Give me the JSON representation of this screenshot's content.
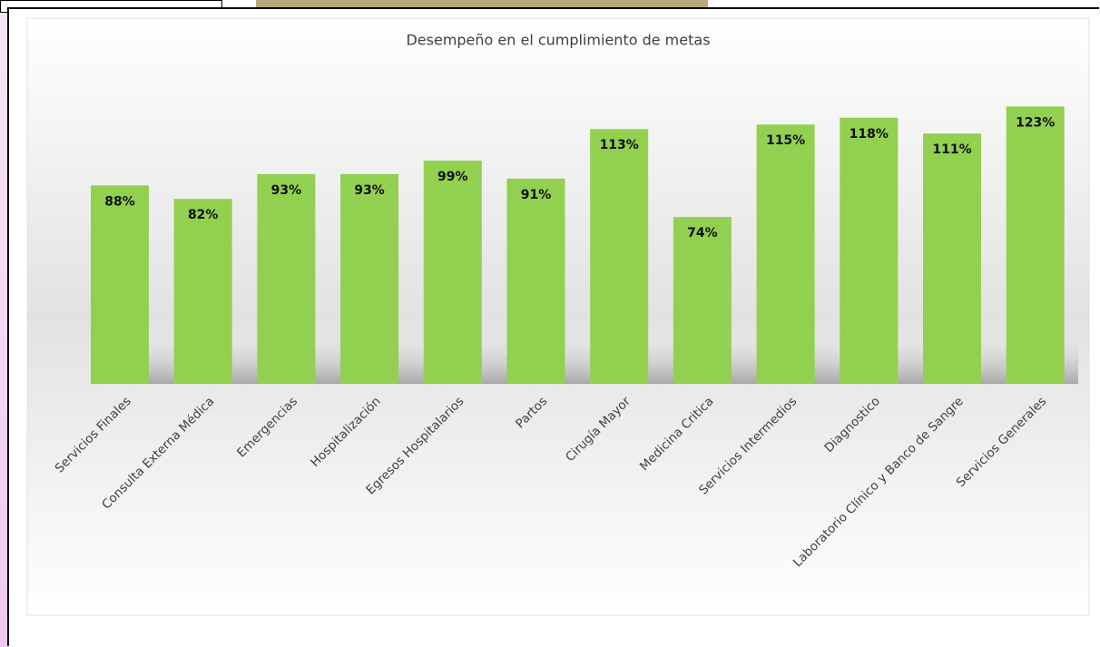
{
  "chart_data": {
    "type": "bar",
    "title": "Desempeño en el cumplimiento de metas",
    "categories": [
      "Servicios Finales",
      "Consulta Externa Médica",
      "Emergencias",
      "Hospitalización",
      "Egresos Hospitalarios",
      "Partos",
      "Cirugía Mayor",
      "Medicina Critica",
      "Servicios Intermedios",
      "Diagnostico",
      "Laboratorio Clínico y Banco de Sangre",
      "Servicios Generales"
    ],
    "values": [
      88,
      82,
      93,
      93,
      99,
      91,
      113,
      74,
      115,
      118,
      111,
      123
    ],
    "value_labels": [
      "88%",
      "82%",
      "93%",
      "93%",
      "99%",
      "91%",
      "113%",
      "74%",
      "115%",
      "118%",
      "111%",
      "123%"
    ],
    "color": "#92d050"
  }
}
